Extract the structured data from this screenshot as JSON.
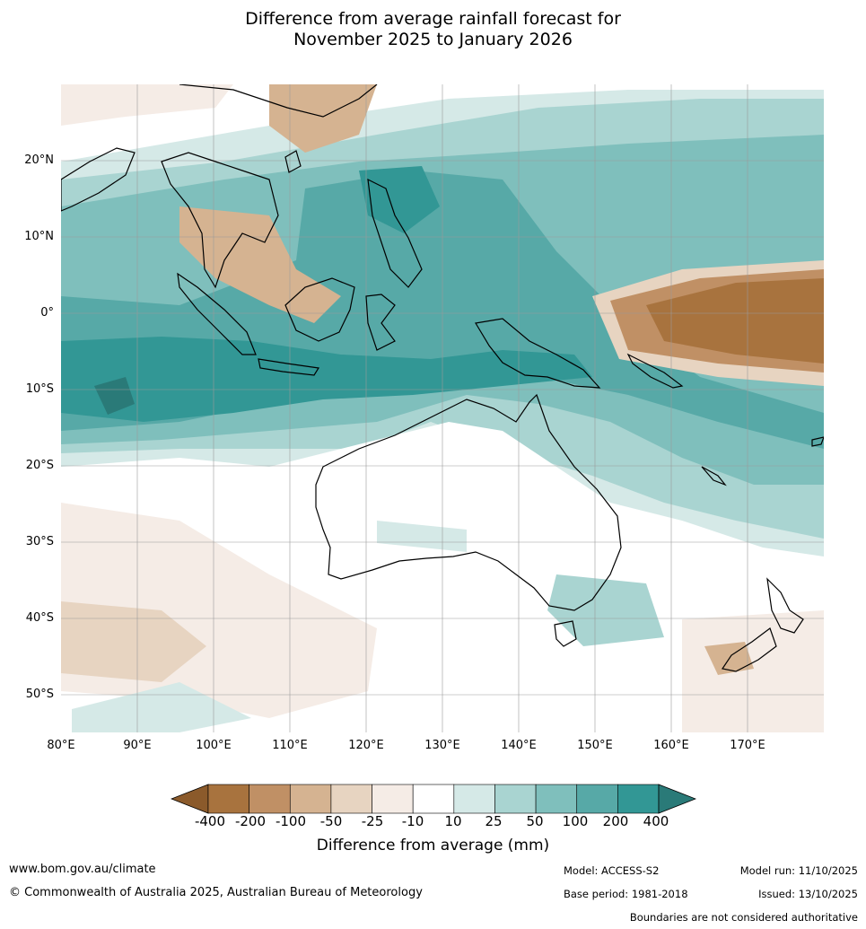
{
  "title": {
    "line1": "Difference from average rainfall forecast for",
    "line2": "November 2025 to January 2026"
  },
  "map": {
    "region": "Indo-Pacific and Australia",
    "lon_range": [
      80,
      180
    ],
    "lat_range": [
      -55,
      30
    ],
    "lat_labels": [
      "20°N",
      "10°N",
      "0°",
      "10°S",
      "20°S",
      "30°S",
      "40°S",
      "50°S"
    ],
    "lon_labels": [
      "80°E",
      "90°E",
      "100°E",
      "110°E",
      "120°E",
      "130°E",
      "140°E",
      "150°E",
      "160°E",
      "170°E"
    ]
  },
  "legend": {
    "ticks": [
      "-400",
      "-200",
      "-100",
      "-50",
      "-25",
      "-10",
      "10",
      "25",
      "50",
      "100",
      "200",
      "400"
    ],
    "colors": [
      "#8b5a2b",
      "#a8733e",
      "#c09065",
      "#d5b391",
      "#e7d4c1",
      "#f5ece6",
      "#ffffff",
      "#d5e9e7",
      "#a9d4d1",
      "#7fbfbc",
      "#57a9a7",
      "#329795",
      "#2a7a78"
    ],
    "label": "Difference from average (mm)"
  },
  "footer": {
    "website": "www.bom.gov.au/climate",
    "copyright": "© Commonwealth of Australia 2025, Australian Bureau of Meteorology",
    "model": "Model: ACCESS-S2",
    "base_period": "Base period: 1981-2018",
    "model_run": "Model run: 11/10/2025",
    "issued": "Issued: 13/10/2025",
    "disclaimer": "Boundaries are not considered authoritative"
  }
}
